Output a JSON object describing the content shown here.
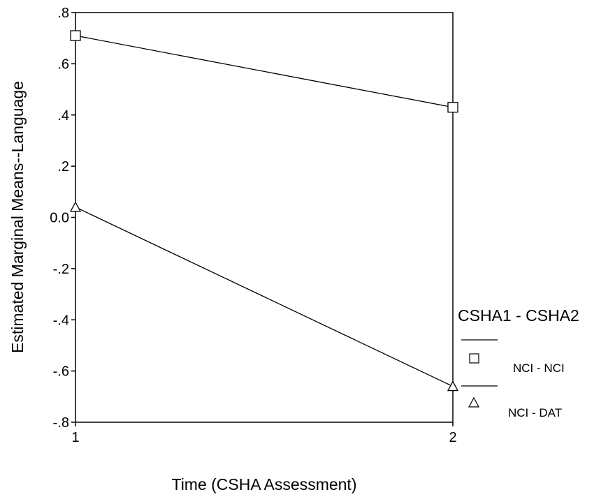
{
  "chart_data": {
    "type": "line",
    "xlabel": "Time (CSHA Assessment)",
    "ylabel": "Estimated Marginal Means--Language",
    "x": [
      1,
      2
    ],
    "x_tick_labels": [
      "1",
      "2"
    ],
    "ylim": [
      -0.8,
      0.8
    ],
    "y_ticks": [
      0.8,
      0.6,
      0.4,
      0.2,
      0.0,
      -0.2,
      -0.4,
      -0.6,
      -0.8
    ],
    "y_tick_labels": [
      ".8",
      ".6",
      ".4",
      ".2",
      "0.0",
      "-.2",
      "-.4",
      "-.6",
      "-.8"
    ],
    "grid": false,
    "legend": {
      "title": "CSHA1 - CSHA2",
      "placement": "right"
    },
    "series": [
      {
        "name": "NCI - NCI",
        "marker": "square",
        "values": [
          0.71,
          0.43
        ],
        "color": "#000000"
      },
      {
        "name": "NCI - DAT",
        "marker": "triangle",
        "values": [
          0.04,
          -0.66
        ],
        "color": "#000000"
      }
    ]
  }
}
